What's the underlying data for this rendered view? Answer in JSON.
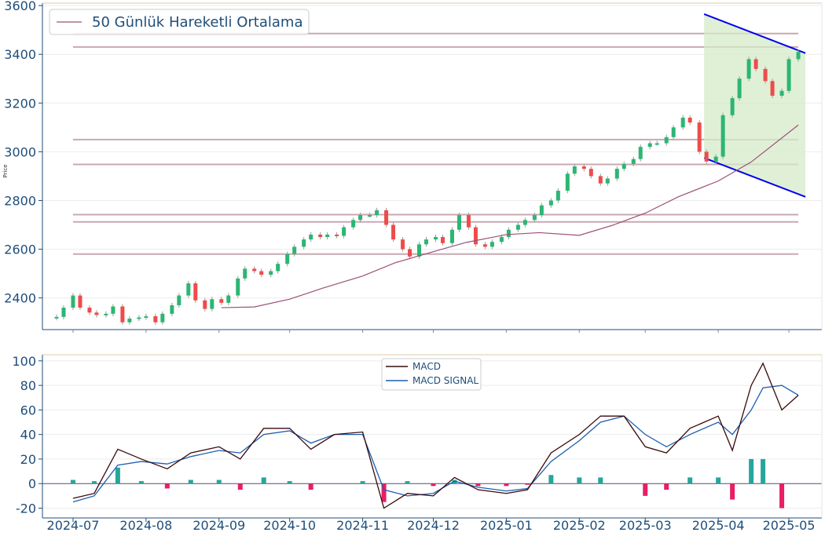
{
  "chart_data": [
    {
      "type": "candlestick",
      "title": "",
      "xlabel": "",
      "ylabel": "Price",
      "ylim": [
        2270,
        3610
      ],
      "yticks": [
        2400,
        2600,
        2800,
        3000,
        3200,
        3400,
        3600
      ],
      "grid": true,
      "legend": {
        "position": "top-left",
        "entries": [
          "50 Günlük Hareketli Ortalama"
        ]
      },
      "colors": {
        "up": "#2bb673",
        "down": "#ef4b4b",
        "ma": "#9c5078",
        "hline": "#c8a8b0",
        "channel_line": "#0000ee",
        "channel_fill": "#d6ebc8",
        "axis": "#1f4e79"
      },
      "horizontal_levels": [
        3485,
        3430,
        3050,
        2948,
        2742,
        2712,
        2580
      ],
      "channel": {
        "x_start": "2025-03-26",
        "x_end": "2025-05-08",
        "upper": [
          3565,
          3405
        ],
        "lower": [
          2975,
          2815
        ]
      },
      "series": [
        {
          "type": "candles",
          "x": [
            "2024-06-24",
            "2024-06-27",
            "2024-07-01",
            "2024-07-04",
            "2024-07-08",
            "2024-07-11",
            "2024-07-15",
            "2024-07-18",
            "2024-07-22",
            "2024-07-25",
            "2024-07-29",
            "2024-08-01",
            "2024-08-05",
            "2024-08-08",
            "2024-08-12",
            "2024-08-15",
            "2024-08-19",
            "2024-08-22",
            "2024-08-26",
            "2024-08-29",
            "2024-09-02",
            "2024-09-05",
            "2024-09-09",
            "2024-09-12",
            "2024-09-16",
            "2024-09-19",
            "2024-09-23",
            "2024-09-26",
            "2024-09-30",
            "2024-10-03",
            "2024-10-07",
            "2024-10-10",
            "2024-10-14",
            "2024-10-17",
            "2024-10-21",
            "2024-10-24",
            "2024-10-28",
            "2024-10-31",
            "2024-11-04",
            "2024-11-07",
            "2024-11-11",
            "2024-11-14",
            "2024-11-18",
            "2024-11-21",
            "2024-11-25",
            "2024-11-28",
            "2024-12-02",
            "2024-12-05",
            "2024-12-09",
            "2024-12-12",
            "2024-12-16",
            "2024-12-19",
            "2024-12-23",
            "2024-12-26",
            "2024-12-30",
            "2025-01-02",
            "2025-01-06",
            "2025-01-09",
            "2025-01-13",
            "2025-01-16",
            "2025-01-20",
            "2025-01-23",
            "2025-01-27",
            "2025-01-30",
            "2025-02-03",
            "2025-02-06",
            "2025-02-10",
            "2025-02-13",
            "2025-02-17",
            "2025-02-20",
            "2025-02-24",
            "2025-02-27",
            "2025-03-03",
            "2025-03-06",
            "2025-03-10",
            "2025-03-13",
            "2025-03-17",
            "2025-03-20",
            "2025-03-24",
            "2025-03-27",
            "2025-03-31",
            "2025-04-03",
            "2025-04-07",
            "2025-04-10",
            "2025-04-14",
            "2025-04-17",
            "2025-04-21",
            "2025-04-24",
            "2025-04-28",
            "2025-05-01",
            "2025-05-05"
          ],
          "open": [
            2318,
            2322,
            2360,
            2410,
            2360,
            2340,
            2330,
            2335,
            2365,
            2300,
            2315,
            2320,
            2325,
            2300,
            2335,
            2370,
            2410,
            2460,
            2390,
            2355,
            2395,
            2380,
            2410,
            2480,
            2520,
            2510,
            2495,
            2510,
            2540,
            2580,
            2610,
            2640,
            2660,
            2650,
            2660,
            2655,
            2690,
            2720,
            2740,
            2740,
            2760,
            2700,
            2640,
            2600,
            2570,
            2620,
            2640,
            2650,
            2625,
            2680,
            2740,
            2690,
            2620,
            2610,
            2630,
            2650,
            2680,
            2700,
            2720,
            2740,
            2780,
            2800,
            2840,
            2910,
            2940,
            2930,
            2900,
            2870,
            2890,
            2930,
            2950,
            2970,
            3020,
            3035,
            3035,
            3060,
            3100,
            3140,
            3120,
            3000,
            2960,
            2980,
            3150,
            3220,
            3300,
            3380,
            3340,
            3290,
            3230,
            3250,
            3380
          ],
          "close": [
            2322,
            2360,
            2410,
            2360,
            2340,
            2330,
            2335,
            2365,
            2300,
            2315,
            2320,
            2325,
            2300,
            2335,
            2370,
            2410,
            2460,
            2390,
            2355,
            2395,
            2380,
            2410,
            2480,
            2520,
            2510,
            2495,
            2510,
            2540,
            2580,
            2610,
            2640,
            2660,
            2650,
            2660,
            2655,
            2690,
            2720,
            2740,
            2740,
            2760,
            2700,
            2640,
            2600,
            2570,
            2620,
            2640,
            2650,
            2625,
            2680,
            2740,
            2690,
            2620,
            2610,
            2630,
            2650,
            2680,
            2700,
            2720,
            2740,
            2780,
            2800,
            2840,
            2910,
            2940,
            2930,
            2900,
            2870,
            2890,
            2930,
            2950,
            2970,
            3020,
            3035,
            3035,
            3060,
            3100,
            3140,
            3120,
            3000,
            2960,
            2980,
            3150,
            3220,
            3300,
            3380,
            3340,
            3290,
            3230,
            3250,
            3380,
            3410
          ]
        },
        {
          "type": "line",
          "name": "50 Günlük Hareketli Ortalama",
          "x": [
            "2024-09-02",
            "2024-09-16",
            "2024-10-01",
            "2024-10-15",
            "2024-11-01",
            "2024-11-15",
            "2024-12-01",
            "2024-12-15",
            "2025-01-01",
            "2025-01-15",
            "2025-02-01",
            "2025-02-15",
            "2025-03-01",
            "2025-03-15",
            "2025-04-01",
            "2025-04-15",
            "2025-05-05"
          ],
          "values": [
            2360,
            2363,
            2395,
            2440,
            2490,
            2545,
            2590,
            2628,
            2660,
            2668,
            2657,
            2698,
            2748,
            2815,
            2880,
            2958,
            3110
          ]
        }
      ]
    },
    {
      "type": "macd",
      "ylim": [
        -28,
        105
      ],
      "yticks": [
        -20,
        0,
        20,
        40,
        60,
        80,
        100
      ],
      "xticks": [
        "2024-07",
        "2024-08",
        "2024-09",
        "2024-10",
        "2024-11",
        "2024-12",
        "2025-01",
        "2025-02",
        "2025-03",
        "2025-04",
        "2025-05"
      ],
      "legend": {
        "position": "top-center",
        "entries": [
          "MACD",
          "MACD SIGNAL"
        ]
      },
      "colors": {
        "macd": "#3a0a0a",
        "signal": "#1c5fb0",
        "hist_pos": "#26a69a",
        "hist_neg": "#e91e63"
      },
      "series": [
        {
          "name": "MACD",
          "x": [
            "2024-07-01",
            "2024-07-10",
            "2024-07-20",
            "2024-07-30",
            "2024-08-10",
            "2024-08-20",
            "2024-09-01",
            "2024-09-10",
            "2024-09-20",
            "2024-10-01",
            "2024-10-10",
            "2024-10-20",
            "2024-11-01",
            "2024-11-10",
            "2024-11-20",
            "2024-12-01",
            "2024-12-10",
            "2024-12-20",
            "2025-01-01",
            "2025-01-10",
            "2025-01-20",
            "2025-02-01",
            "2025-02-10",
            "2025-02-20",
            "2025-03-01",
            "2025-03-10",
            "2025-03-20",
            "2025-04-01",
            "2025-04-07",
            "2025-04-15",
            "2025-04-20",
            "2025-04-28",
            "2025-05-05"
          ],
          "values": [
            -12,
            -8,
            28,
            20,
            12,
            25,
            30,
            20,
            45,
            45,
            28,
            40,
            42,
            -20,
            -8,
            -10,
            5,
            -5,
            -8,
            -5,
            25,
            40,
            55,
            55,
            30,
            25,
            45,
            55,
            27,
            80,
            98,
            60,
            72
          ]
        },
        {
          "name": "MACD SIGNAL",
          "x": [
            "2024-07-01",
            "2024-07-10",
            "2024-07-20",
            "2024-07-30",
            "2024-08-10",
            "2024-08-20",
            "2024-09-01",
            "2024-09-10",
            "2024-09-20",
            "2024-10-01",
            "2024-10-10",
            "2024-10-20",
            "2024-11-01",
            "2024-11-10",
            "2024-11-20",
            "2024-12-01",
            "2024-12-10",
            "2024-12-20",
            "2025-01-01",
            "2025-01-10",
            "2025-01-20",
            "2025-02-01",
            "2025-02-10",
            "2025-02-20",
            "2025-03-01",
            "2025-03-10",
            "2025-03-20",
            "2025-04-01",
            "2025-04-07",
            "2025-04-15",
            "2025-04-20",
            "2025-04-28",
            "2025-05-05"
          ],
          "values": [
            -15,
            -10,
            15,
            18,
            16,
            22,
            27,
            25,
            40,
            43,
            33,
            40,
            40,
            -5,
            -10,
            -8,
            2,
            -3,
            -6,
            -4,
            18,
            35,
            50,
            55,
            40,
            30,
            40,
            50,
            40,
            60,
            78,
            80,
            72
          ]
        },
        {
          "name": "histogram",
          "x": [
            "2024-07-01",
            "2024-07-10",
            "2024-07-20",
            "2024-07-30",
            "2024-08-10",
            "2024-08-20",
            "2024-09-01",
            "2024-09-10",
            "2024-09-20",
            "2024-10-01",
            "2024-10-10",
            "2024-10-20",
            "2024-11-01",
            "2024-11-10",
            "2024-11-20",
            "2024-12-01",
            "2024-12-10",
            "2024-12-20",
            "2025-01-01",
            "2025-01-10",
            "2025-01-20",
            "2025-02-01",
            "2025-02-10",
            "2025-02-20",
            "2025-03-01",
            "2025-03-10",
            "2025-03-20",
            "2025-04-01",
            "2025-04-07",
            "2025-04-15",
            "2025-04-20",
            "2025-04-28",
            "2025-05-05"
          ],
          "values": [
            3,
            2,
            13,
            2,
            -4,
            3,
            3,
            -5,
            5,
            2,
            -5,
            0,
            2,
            -15,
            2,
            -2,
            3,
            -2,
            -2,
            -1,
            7,
            5,
            5,
            0,
            -10,
            -5,
            5,
            5,
            -13,
            20,
            20,
            -20,
            0
          ]
        }
      ]
    }
  ]
}
